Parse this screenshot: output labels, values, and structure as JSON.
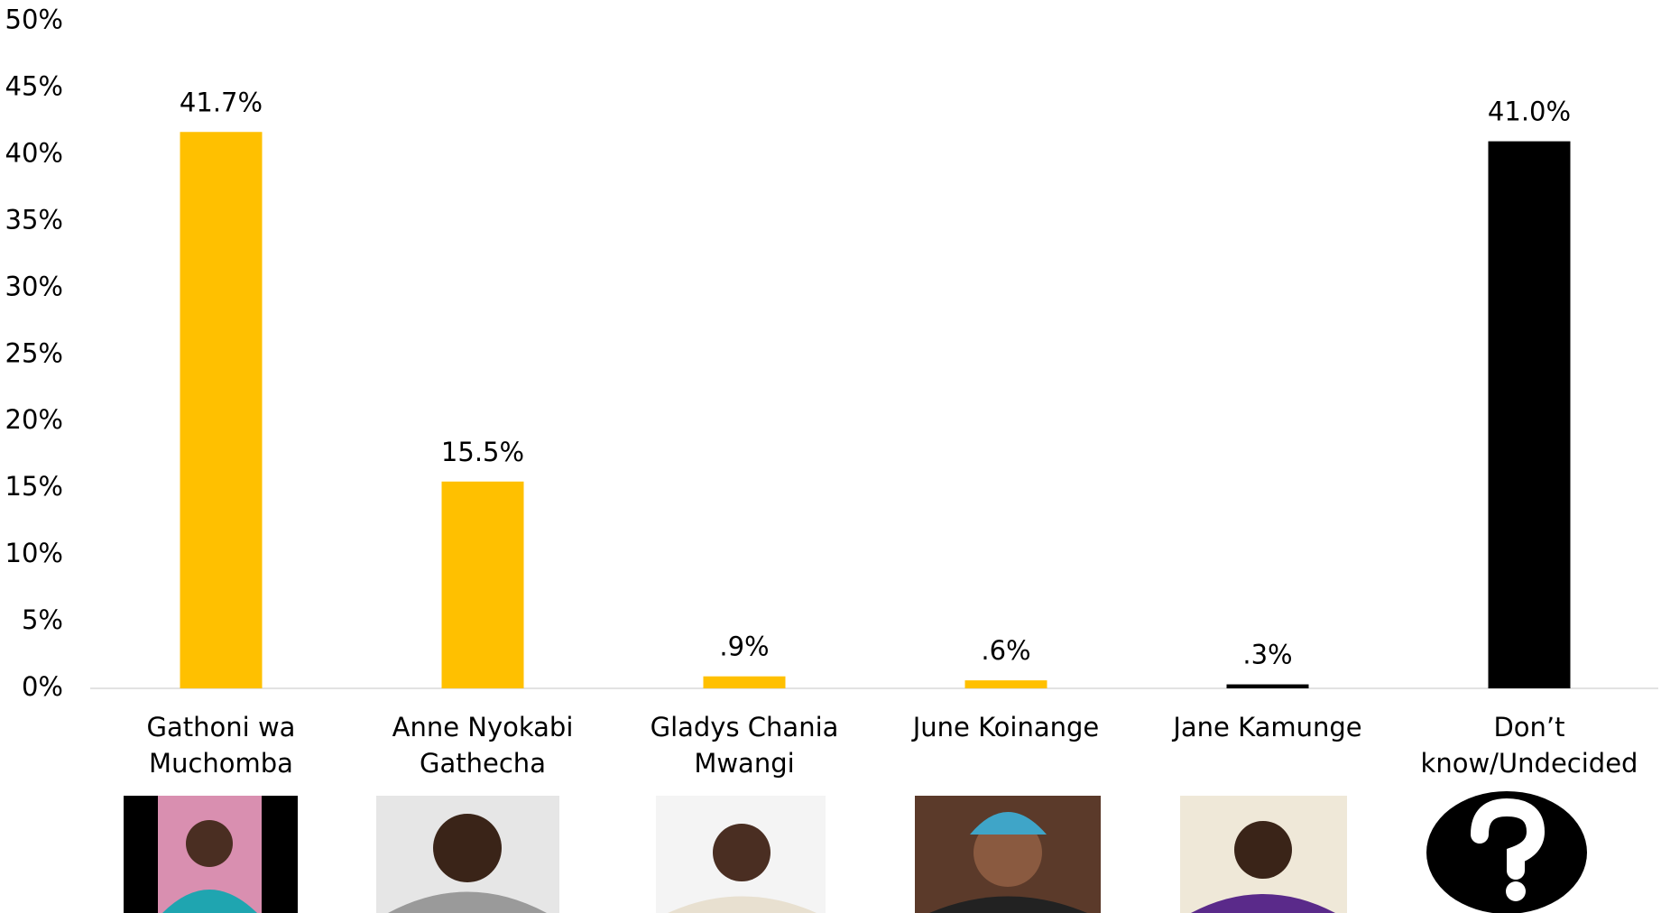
{
  "chart_data": {
    "type": "bar",
    "categories": [
      "Gathoni wa Muchomba",
      "Anne Nyokabi Gathecha",
      "Gladys Chania Mwangi",
      "June Koinange",
      "Jane Kamunge",
      "Don’t know/Undecided"
    ],
    "values": [
      41.7,
      15.5,
      0.9,
      0.6,
      0.3,
      41.0
    ],
    "value_labels": [
      "41.7%",
      "15.5%",
      ".9%",
      ".6%",
      ".3%",
      "41.0%"
    ],
    "colors": [
      "#FFC000",
      "#FFC000",
      "#FFC000",
      "#FFC000",
      "#000000",
      "#000000"
    ],
    "ylim": [
      0,
      50
    ],
    "yticks": [
      {
        "value": 0,
        "label": "0%"
      },
      {
        "value": 5,
        "label": "5%"
      },
      {
        "value": 10,
        "label": "10%"
      },
      {
        "value": 15,
        "label": "15%"
      },
      {
        "value": 20,
        "label": "20%"
      },
      {
        "value": 25,
        "label": "25%"
      },
      {
        "value": 30,
        "label": "30%"
      },
      {
        "value": 35,
        "label": "35%"
      },
      {
        "value": 40,
        "label": "40%"
      },
      {
        "value": 45,
        "label": "45%"
      },
      {
        "value": 50,
        "label": "50%"
      }
    ],
    "grid": false
  }
}
